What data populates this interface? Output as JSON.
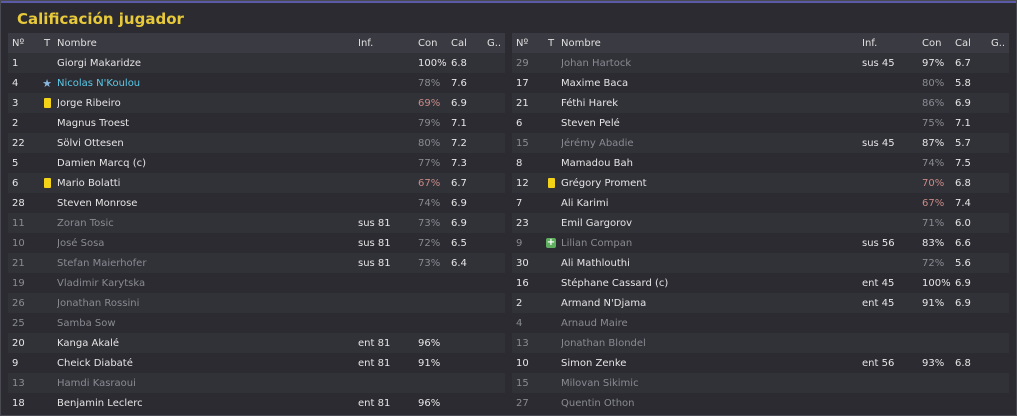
{
  "title": "Calificación jugador",
  "headers": {
    "num": "Nº",
    "t": "T",
    "name": "Nombre",
    "inf": "Inf.",
    "con": "Con",
    "cal": "Cal",
    "g": "G.."
  },
  "colors": {
    "title": "#e8c93a",
    "highlight": "#5cc8e8",
    "dim": "#8a8a92",
    "low_condition": "#c98a86",
    "yellow_card": "#f2d318"
  },
  "left": [
    {
      "num": "1",
      "icon": "",
      "name": "Giorgi Makaridze",
      "inf": "",
      "con": "100%",
      "cal": "6.8",
      "style": "",
      "conStyle": ""
    },
    {
      "num": "4",
      "icon": "star",
      "name": "Nicolas N'Koulou",
      "inf": "",
      "con": "78%",
      "cal": "7.6",
      "style": "hl",
      "conStyle": "dim"
    },
    {
      "num": "3",
      "icon": "card",
      "name": "Jorge Ribeiro",
      "inf": "",
      "con": "69%",
      "cal": "6.9",
      "style": "",
      "conStyle": "red"
    },
    {
      "num": "2",
      "icon": "",
      "name": "Magnus Troest",
      "inf": "",
      "con": "79%",
      "cal": "7.1",
      "style": "",
      "conStyle": "dim"
    },
    {
      "num": "22",
      "icon": "",
      "name": "Sölvi Ottesen",
      "inf": "",
      "con": "80%",
      "cal": "7.2",
      "style": "",
      "conStyle": "dim"
    },
    {
      "num": "5",
      "icon": "",
      "name": "Damien Marcq (c)",
      "inf": "",
      "con": "77%",
      "cal": "7.3",
      "style": "",
      "conStyle": "dim"
    },
    {
      "num": "6",
      "icon": "card",
      "name": "Mario Bolatti",
      "inf": "",
      "con": "67%",
      "cal": "6.7",
      "style": "",
      "conStyle": "red"
    },
    {
      "num": "28",
      "icon": "",
      "name": "Steven Monrose",
      "inf": "",
      "con": "74%",
      "cal": "6.9",
      "style": "",
      "conStyle": "dim"
    },
    {
      "num": "11",
      "icon": "",
      "name": "Zoran Tosic",
      "inf": "sus 81",
      "con": "73%",
      "cal": "6.9",
      "style": "dim",
      "conStyle": "dim"
    },
    {
      "num": "10",
      "icon": "",
      "name": "José Sosa",
      "inf": "sus 81",
      "con": "72%",
      "cal": "6.5",
      "style": "dim",
      "conStyle": "dim"
    },
    {
      "num": "21",
      "icon": "",
      "name": "Stefan Maierhofer",
      "inf": "sus 81",
      "con": "73%",
      "cal": "6.4",
      "style": "dim",
      "conStyle": "dim"
    },
    {
      "num": "19",
      "icon": "",
      "name": "Vladimir Karytska",
      "inf": "",
      "con": "",
      "cal": "",
      "style": "dim",
      "conStyle": ""
    },
    {
      "num": "26",
      "icon": "",
      "name": "Jonathan Rossini",
      "inf": "",
      "con": "",
      "cal": "",
      "style": "dim",
      "conStyle": ""
    },
    {
      "num": "25",
      "icon": "",
      "name": "Samba Sow",
      "inf": "",
      "con": "",
      "cal": "",
      "style": "dim",
      "conStyle": ""
    },
    {
      "num": "20",
      "icon": "",
      "name": "Kanga Akalé",
      "inf": "ent 81",
      "con": "96%",
      "cal": "",
      "style": "",
      "conStyle": ""
    },
    {
      "num": "9",
      "icon": "",
      "name": "Cheick Diabaté",
      "inf": "ent 81",
      "con": "91%",
      "cal": "",
      "style": "",
      "conStyle": ""
    },
    {
      "num": "13",
      "icon": "",
      "name": "Hamdi Kasraoui",
      "inf": "",
      "con": "",
      "cal": "",
      "style": "dim",
      "conStyle": ""
    },
    {
      "num": "18",
      "icon": "",
      "name": "Benjamin Leclerc",
      "inf": "ent 81",
      "con": "96%",
      "cal": "",
      "style": "",
      "conStyle": ""
    }
  ],
  "right": [
    {
      "num": "29",
      "icon": "",
      "name": "Johan Hartock",
      "inf": "sus 45",
      "con": "97%",
      "cal": "6.7",
      "style": "dim",
      "conStyle": ""
    },
    {
      "num": "17",
      "icon": "",
      "name": "Maxime Baca",
      "inf": "",
      "con": "80%",
      "cal": "5.8",
      "style": "",
      "conStyle": "dim"
    },
    {
      "num": "21",
      "icon": "",
      "name": "Féthi Harek",
      "inf": "",
      "con": "86%",
      "cal": "6.9",
      "style": "",
      "conStyle": "dim"
    },
    {
      "num": "6",
      "icon": "",
      "name": "Steven Pelé",
      "inf": "",
      "con": "75%",
      "cal": "7.1",
      "style": "",
      "conStyle": "dim"
    },
    {
      "num": "15",
      "icon": "",
      "name": "Jérémy Abadie",
      "inf": "sus 45",
      "con": "87%",
      "cal": "5.7",
      "style": "dim",
      "conStyle": ""
    },
    {
      "num": "8",
      "icon": "",
      "name": "Mamadou Bah",
      "inf": "",
      "con": "74%",
      "cal": "7.5",
      "style": "",
      "conStyle": "dim"
    },
    {
      "num": "12",
      "icon": "card",
      "name": "Grégory Proment",
      "inf": "",
      "con": "70%",
      "cal": "6.8",
      "style": "",
      "conStyle": "red"
    },
    {
      "num": "7",
      "icon": "",
      "name": "Ali Karimi",
      "inf": "",
      "con": "67%",
      "cal": "7.4",
      "style": "",
      "conStyle": "red"
    },
    {
      "num": "23",
      "icon": "",
      "name": "Emil Gargorov",
      "inf": "",
      "con": "71%",
      "cal": "6.0",
      "style": "",
      "conStyle": "dim"
    },
    {
      "num": "9",
      "icon": "plus",
      "name": "Lilian Compan",
      "inf": "sus 56",
      "con": "83%",
      "cal": "6.6",
      "style": "dim",
      "conStyle": ""
    },
    {
      "num": "30",
      "icon": "",
      "name": "Ali Mathlouthi",
      "inf": "",
      "con": "72%",
      "cal": "5.6",
      "style": "",
      "conStyle": "dim"
    },
    {
      "num": "16",
      "icon": "",
      "name": "Stéphane Cassard (c)",
      "inf": "ent 45",
      "con": "100%",
      "cal": "6.9",
      "style": "",
      "conStyle": ""
    },
    {
      "num": "2",
      "icon": "",
      "name": "Armand N'Djama",
      "inf": "ent 45",
      "con": "91%",
      "cal": "6.9",
      "style": "",
      "conStyle": ""
    },
    {
      "num": "4",
      "icon": "",
      "name": "Arnaud Maire",
      "inf": "",
      "con": "",
      "cal": "",
      "style": "dim",
      "conStyle": ""
    },
    {
      "num": "13",
      "icon": "",
      "name": "Jonathan Blondel",
      "inf": "",
      "con": "",
      "cal": "",
      "style": "dim",
      "conStyle": ""
    },
    {
      "num": "10",
      "icon": "",
      "name": "Simon Zenke",
      "inf": "ent 56",
      "con": "93%",
      "cal": "6.8",
      "style": "",
      "conStyle": ""
    },
    {
      "num": "15",
      "icon": "",
      "name": "Milovan Sikimic",
      "inf": "",
      "con": "",
      "cal": "",
      "style": "dim",
      "conStyle": ""
    },
    {
      "num": "27",
      "icon": "",
      "name": "Quentin Othon",
      "inf": "",
      "con": "",
      "cal": "",
      "style": "dim",
      "conStyle": ""
    }
  ]
}
